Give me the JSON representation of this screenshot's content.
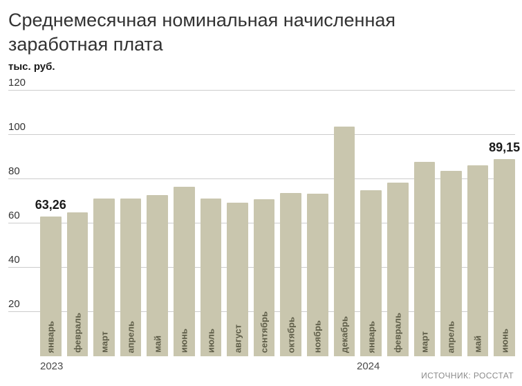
{
  "chart_data": {
    "type": "bar",
    "title": "Среднемесячная номинальная начисленная заработная плата",
    "unit_label": "тыс. руб.",
    "source": "ИСТОЧНИК: РОССТАТ",
    "ylim": [
      0,
      120
    ],
    "yticks": [
      120,
      100,
      80,
      60,
      40,
      20
    ],
    "grid": true,
    "legend": false,
    "categories": [
      "январь",
      "февраль",
      "март",
      "апрель",
      "май",
      "июнь",
      "июль",
      "август",
      "сентябрь",
      "октябрь",
      "ноябрь",
      "декабрь",
      "январь",
      "февраль",
      "март",
      "апрель",
      "май",
      "июнь"
    ],
    "values": [
      63.26,
      65.09,
      71.33,
      71.2,
      72.85,
      76.6,
      71.42,
      69.44,
      70.92,
      73.85,
      73.38,
      103.82,
      75.03,
      78.43,
      87.74,
      83.88,
      86.38,
      89.15
    ],
    "year_labels": [
      {
        "text": "2023",
        "index": 0
      },
      {
        "text": "2024",
        "index": 12
      }
    ],
    "annotations": [
      {
        "text": "63,26",
        "index": 0
      },
      {
        "text": "89,15",
        "index": 17
      }
    ],
    "bar_color": "#c9c6ae",
    "month_label_color": "#5f5e49",
    "gridline_color": "#cccccc"
  }
}
